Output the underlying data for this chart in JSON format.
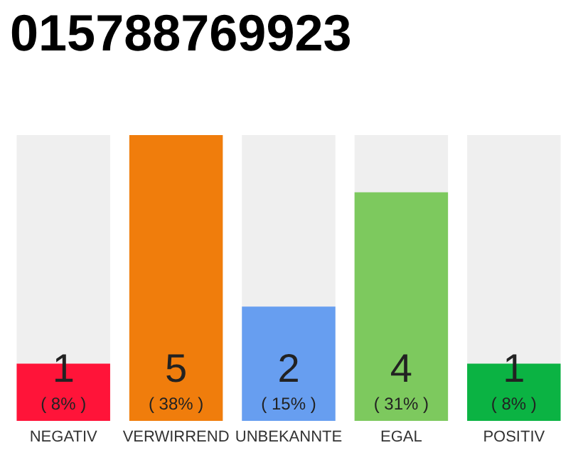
{
  "chart_data": {
    "type": "bar",
    "title": "015788769923",
    "categories": [
      "NEGATIV",
      "VERWIRREND",
      "UNBEKANNTE",
      "EGAL",
      "POSITIV"
    ],
    "values": [
      1,
      5,
      2,
      4,
      1
    ],
    "colors": [
      "#ff1439",
      "#f07d0c",
      "#679ef0",
      "#7dc95e",
      "#0bb343"
    ],
    "value_labels": [
      "1\n( 8% )",
      "5\n( 38% )",
      "2\n( 15% )",
      "4\n( 31% )",
      "1\n( 8% )"
    ]
  }
}
